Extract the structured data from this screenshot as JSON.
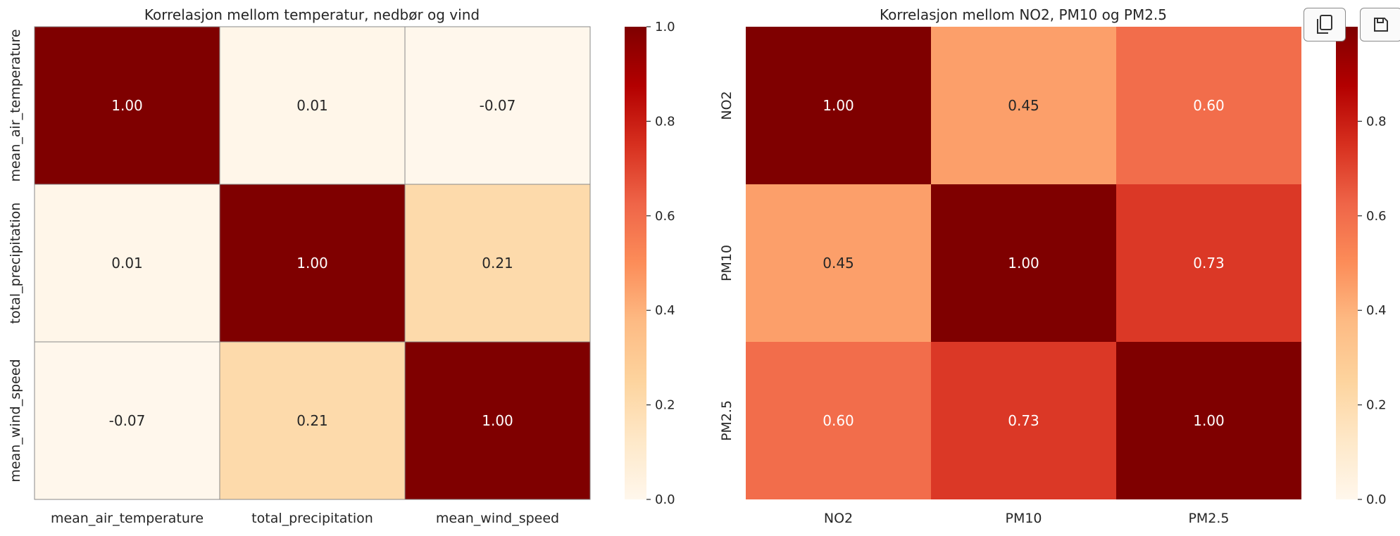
{
  "colors": {
    "colormap": [
      "#fff7ec",
      "#fee8c8",
      "#fdd49e",
      "#fdbb84",
      "#fc8d59",
      "#ef6548",
      "#d7301f",
      "#b30000",
      "#7f0000"
    ],
    "text_dark": "#262626",
    "text_light": "#ffffff",
    "border": "#8a8a8a"
  },
  "toolbar": {
    "copy_icon": "copy-icon",
    "save_icon": "save-icon"
  },
  "chart_data": [
    {
      "type": "heatmap",
      "title": "Korrelasjon mellom temperatur, nedbør og vind",
      "x_labels": [
        "mean_air_temperature",
        "total_precipitation",
        "mean_wind_speed"
      ],
      "y_labels": [
        "mean_air_temperature",
        "total_precipitation",
        "mean_wind_speed"
      ],
      "values": [
        [
          1.0,
          0.01,
          -0.07
        ],
        [
          0.01,
          1.0,
          0.21
        ],
        [
          -0.07,
          0.21,
          1.0
        ]
      ],
      "cell_text": [
        [
          "1.00",
          "0.01",
          "-0.07"
        ],
        [
          "0.01",
          "1.00",
          "0.21"
        ],
        [
          "-0.07",
          "0.21",
          "1.00"
        ]
      ],
      "vmin": 0.0,
      "vmax": 1.0,
      "colorbar_ticks": [
        "0.0",
        "0.2",
        "0.4",
        "0.6",
        "0.8",
        "1.0"
      ],
      "cell_borders": true
    },
    {
      "type": "heatmap",
      "title": "Korrelasjon mellom NO2, PM10 og PM2.5",
      "x_labels": [
        "NO2",
        "PM10",
        "PM2.5"
      ],
      "y_labels": [
        "NO2",
        "PM10",
        "PM2.5"
      ],
      "values": [
        [
          1.0,
          0.45,
          0.6
        ],
        [
          0.45,
          1.0,
          0.73
        ],
        [
          0.6,
          0.73,
          1.0
        ]
      ],
      "cell_text": [
        [
          "1.00",
          "0.45",
          "0.60"
        ],
        [
          "0.45",
          "1.00",
          "0.73"
        ],
        [
          "0.60",
          "0.73",
          "1.00"
        ]
      ],
      "vmin": 0.0,
      "vmax": 1.0,
      "colorbar_ticks": [
        "0.0",
        "0.2",
        "0.4",
        "0.6",
        "0.8"
      ],
      "cell_borders": false
    }
  ]
}
